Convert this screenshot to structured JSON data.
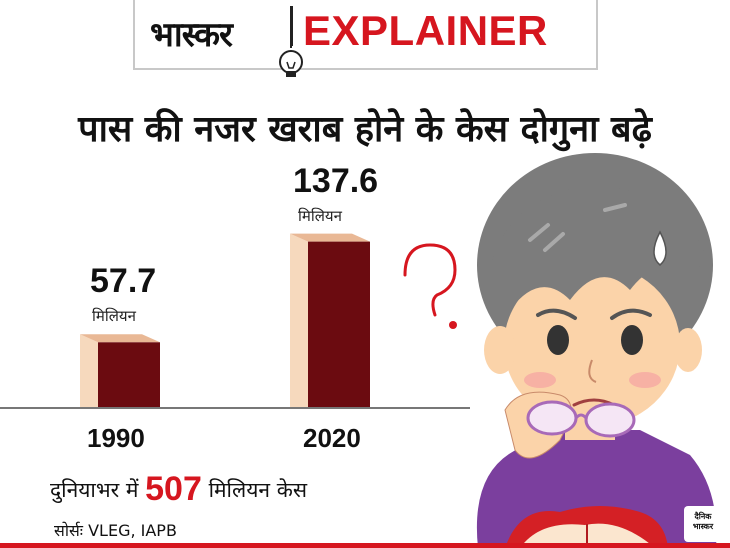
{
  "header": {
    "brand": "भास्कर",
    "title": "EXPLAINER"
  },
  "headline": "पास की नजर खराब होने के केस दोगुना बढ़े",
  "chart_data": {
    "type": "bar",
    "categories": [
      "1990",
      "2020"
    ],
    "values": [
      57.7,
      137.6
    ],
    "value_labels": [
      "57.7",
      "137.6"
    ],
    "unit": "मिलियन",
    "title": "पास की नजर खराब होने के केस दोगुना बढ़े",
    "xlabel": "",
    "ylabel": "",
    "ylim": [
      0,
      160
    ],
    "grid": false,
    "colors": {
      "front": "#6b0b10",
      "side": "#f6d9bd",
      "top": "#e9b895"
    }
  },
  "summary": {
    "prefix": "दुनियाभर में",
    "number": "507",
    "suffix": "मिलियन केस"
  },
  "source": "सोर्सः VLEG, IAPB",
  "logo": {
    "line1": "दैनिक",
    "line2": "भास्कर"
  },
  "colors": {
    "accent": "#d6161f",
    "skin": "#fbd3a9",
    "hair": "#7c7c7c",
    "shirt": "#7b3f9e"
  }
}
